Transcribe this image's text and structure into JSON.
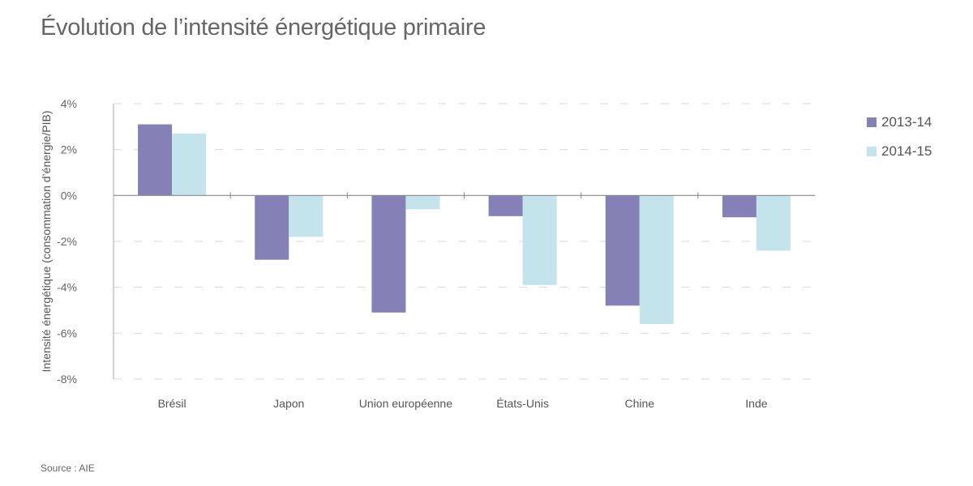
{
  "chart_data": {
    "type": "bar",
    "title": "Évolution de l’intensité énergétique primaire",
    "xlabel": "",
    "ylabel": "Intensité énergétique (consommation d’énergie/PIB)",
    "categories": [
      "Brésil",
      "Japon",
      "Union européenne",
      "États-Unis",
      "Chine",
      "Inde"
    ],
    "series": [
      {
        "name": "2013-14",
        "color": "#8580b6",
        "values": [
          3.1,
          -2.8,
          -5.1,
          -0.9,
          -4.8,
          -0.95
        ]
      },
      {
        "name": "2014-15",
        "color": "#c3e4ea",
        "values": [
          2.7,
          -1.8,
          -0.6,
          -3.9,
          -5.6,
          -2.4
        ]
      }
    ],
    "ylim": [
      -8,
      4
    ],
    "yticks": [
      4,
      2,
      0,
      -2,
      -4,
      -6,
      -8
    ],
    "ytick_labels": [
      "4%",
      "2%",
      "0%",
      "-2%",
      "-4%",
      "-6%",
      "-8%"
    ],
    "grid": true,
    "legend_position": "right-top",
    "source": "Source : AIE"
  }
}
